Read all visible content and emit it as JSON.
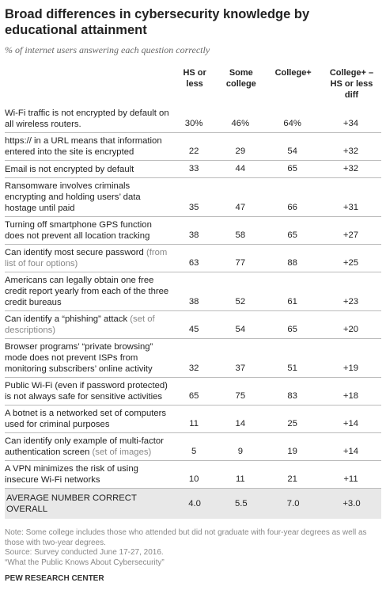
{
  "header": {
    "title": "Broad differences in cybersecurity knowledge by educational attainment",
    "subtitle": "% of internet users answering each question correctly"
  },
  "table": {
    "columns": [
      "HS or less",
      "Some college",
      "College+",
      "College+ – HS or less diff"
    ],
    "rows": [
      {
        "label": "Wi-Fi traffic is not encrypted by default on all wireless routers.",
        "cells": [
          "30%",
          "46%",
          "64%",
          "+34"
        ]
      },
      {
        "label": "https:// in a URL means that information entered into the site is encrypted",
        "cells": [
          "22",
          "29",
          "54",
          "+32"
        ]
      },
      {
        "label": "Email is not encrypted by default",
        "cells": [
          "33",
          "44",
          "65",
          "+32"
        ]
      },
      {
        "label": "Ransomware involves criminals encrypting and holding users’ data hostage until paid",
        "cells": [
          "35",
          "47",
          "66",
          "+31"
        ]
      },
      {
        "label": "Turning off smartphone GPS function does not prevent all location tracking",
        "cells": [
          "38",
          "58",
          "65",
          "+27"
        ]
      },
      {
        "label": "Can identify most secure password",
        "note": "(from list of four options)",
        "cells": [
          "63",
          "77",
          "88",
          "+25"
        ]
      },
      {
        "label": "Americans can legally obtain one free credit report yearly from each of the three credit bureaus",
        "cells": [
          "38",
          "52",
          "61",
          "+23"
        ]
      },
      {
        "label": "Can identify a “phishing” attack",
        "note": "(set of descriptions)",
        "cells": [
          "45",
          "54",
          "65",
          "+20"
        ]
      },
      {
        "label": "Browser programs’ “private browsing” mode does not prevent ISPs from monitoring subscribers’ online activity",
        "cells": [
          "32",
          "37",
          "51",
          "+19"
        ]
      },
      {
        "label": "Public Wi-Fi (even if password protected) is not always safe for sensitive activities",
        "cells": [
          "65",
          "75",
          "83",
          "+18"
        ]
      },
      {
        "label": "A botnet is a networked set of computers used for criminal purposes",
        "cells": [
          "11",
          "14",
          "25",
          "+14"
        ]
      },
      {
        "label": "Can identify only example of multi-factor authentication screen",
        "note": "(set of images)",
        "cells": [
          "5",
          "9",
          "19",
          "+14"
        ]
      },
      {
        "label": "A VPN minimizes the risk of using insecure Wi-Fi networks",
        "cells": [
          "10",
          "11",
          "21",
          "+11"
        ]
      }
    ],
    "summary": {
      "label": "AVERAGE NUMBER CORRECT OVERALL",
      "cells": [
        "4.0",
        "5.5",
        "7.0",
        "+3.0"
      ]
    }
  },
  "footer": {
    "note": "Note: Some college includes those who attended but did not graduate with four-year degrees as well as those with two-year degrees.",
    "source": "Source: Survey conducted June 17-27, 2016.",
    "report": "“What the Public Knows About Cybersecurity”",
    "brand": "PEW RESEARCH CENTER"
  }
}
